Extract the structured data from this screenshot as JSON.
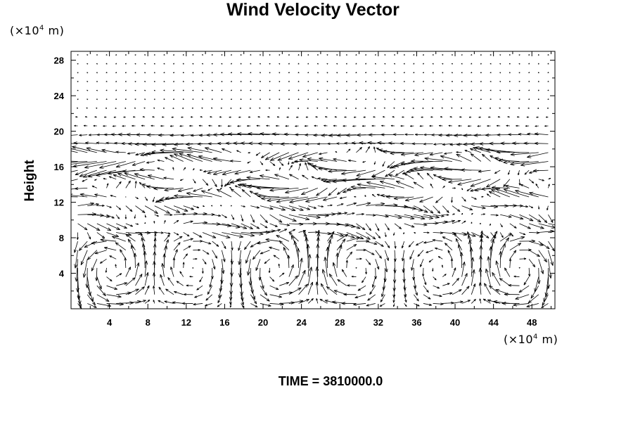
{
  "chart_data": {
    "type": "quiver",
    "title": "Wind Velocity Vector",
    "ylabel": "Height",
    "xlabel": "",
    "x_unit": {
      "prefix": "(×10",
      "exp": "4",
      "suffix": " m)"
    },
    "y_unit": {
      "prefix": "(×10",
      "exp": "4",
      "suffix": " m)"
    },
    "xlim": [
      0,
      50.4
    ],
    "ylim": [
      0,
      29
    ],
    "x_ticks": [
      4,
      8,
      12,
      16,
      20,
      24,
      28,
      32,
      36,
      40,
      44,
      48
    ],
    "y_ticks": [
      4,
      8,
      12,
      16,
      20,
      24,
      28
    ],
    "grid": false,
    "time_label": "TIME =",
    "time_value": "3810000.0"
  }
}
